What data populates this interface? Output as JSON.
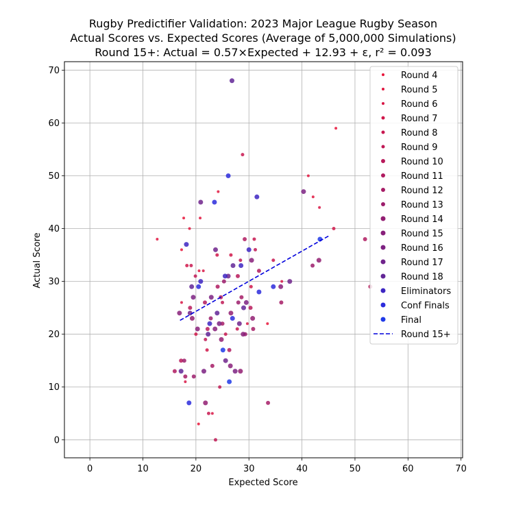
{
  "chart_data": {
    "type": "scatter",
    "title": [
      "Rugby Predictifier Validation: 2023 Major League Rugby Season",
      "Actual Scores vs. Expected Scores (Average of 5,000,000 Simulations)",
      "Round 15+: Actual = 0.57×Expected + 12.93 + ε, r² = 0.093"
    ],
    "xlabel": "Expected Score",
    "ylabel": "Actual Score",
    "xlim": [
      -4.8,
      70.3
    ],
    "ylim": [
      -3.4,
      71.6
    ],
    "xticks": [
      0,
      10,
      20,
      30,
      40,
      50,
      60,
      70
    ],
    "yticks": [
      0,
      10,
      20,
      30,
      40,
      50,
      60,
      70
    ],
    "grid": true,
    "legend_position": "upper right",
    "series": [
      {
        "name": "Round 4",
        "color": "#e8153a",
        "size": 2,
        "points": [
          [
            46.4,
            59
          ],
          [
            17.3,
            36
          ],
          [
            20.5,
            3
          ],
          [
            17.7,
            42
          ],
          [
            33.5,
            22
          ]
        ]
      },
      {
        "name": "Round 5",
        "color": "#e0163f",
        "size": 2,
        "points": [
          [
            41.2,
            50
          ],
          [
            12.7,
            38
          ],
          [
            20.8,
            42
          ],
          [
            42.1,
            46
          ],
          [
            18.8,
            40
          ],
          [
            24.2,
            47
          ],
          [
            20.6,
            32
          ]
        ]
      },
      {
        "name": "Round 6",
        "color": "#d81645",
        "size": 2,
        "points": [
          [
            43.3,
            44
          ],
          [
            17.3,
            26
          ],
          [
            23.1,
            5
          ],
          [
            29.7,
            22
          ],
          [
            36.2,
            30
          ],
          [
            21.4,
            32
          ],
          [
            18.0,
            11
          ]
        ]
      },
      {
        "name": "Round 7",
        "color": "#d0174a",
        "size": 2.5,
        "points": [
          [
            46.0,
            40
          ],
          [
            18.3,
            33
          ],
          [
            24.0,
            35
          ],
          [
            30.4,
            29
          ],
          [
            26.6,
            35
          ],
          [
            22.1,
            17
          ],
          [
            20.0,
            20
          ]
        ]
      },
      {
        "name": "Round 8",
        "color": "#c81850",
        "size": 2.5,
        "points": [
          [
            28.8,
            54
          ],
          [
            22.4,
            5
          ],
          [
            19.1,
            33
          ],
          [
            31.0,
            38
          ],
          [
            34.6,
            34
          ],
          [
            25.6,
            20
          ],
          [
            27.8,
            21
          ]
        ]
      },
      {
        "name": "Round 9",
        "color": "#c01955",
        "size": 2.5,
        "points": [
          [
            23.7,
            0
          ],
          [
            19.9,
            31
          ],
          [
            24.5,
            10
          ],
          [
            28.4,
            34
          ],
          [
            31.2,
            36
          ],
          [
            21.8,
            19
          ],
          [
            25.0,
            26
          ]
        ]
      },
      {
        "name": "Round 10",
        "color": "#b81a5b",
        "size": 3,
        "points": [
          [
            52.9,
            29
          ],
          [
            17.2,
            15
          ],
          [
            22.2,
            21
          ],
          [
            24.7,
            27
          ],
          [
            27.9,
            31
          ],
          [
            30.3,
            25
          ],
          [
            18.9,
            25
          ]
        ]
      },
      {
        "name": "Round 11",
        "color": "#b01b60",
        "size": 3,
        "points": [
          [
            51.9,
            38
          ],
          [
            16.0,
            13
          ],
          [
            24.1,
            29
          ],
          [
            21.7,
            26
          ],
          [
            26.3,
            17
          ],
          [
            29.2,
            38
          ],
          [
            31.9,
            32
          ]
        ]
      },
      {
        "name": "Round 12",
        "color": "#a61c66",
        "size": 3,
        "points": [
          [
            33.6,
            7
          ],
          [
            18.0,
            12
          ],
          [
            23.1,
            14
          ],
          [
            25.0,
            22
          ],
          [
            28.6,
            27
          ],
          [
            30.8,
            21
          ],
          [
            36.1,
            26
          ]
        ]
      },
      {
        "name": "Round 13",
        "color": "#9c1d6c",
        "size": 3,
        "points": [
          [
            42.0,
            33
          ],
          [
            17.8,
            15
          ],
          [
            22.8,
            23
          ],
          [
            25.3,
            30
          ],
          [
            28.0,
            26
          ],
          [
            29.3,
            20
          ],
          [
            19.6,
            12
          ]
        ]
      },
      {
        "name": "Round 14",
        "color": "#921e72",
        "size": 3.5,
        "points": [
          [
            43.2,
            34
          ],
          [
            19.3,
            23
          ],
          [
            21.8,
            7
          ],
          [
            26.6,
            24
          ],
          [
            28.4,
            13
          ],
          [
            30.7,
            23
          ],
          [
            24.8,
            19
          ]
        ]
      },
      {
        "name": "Round 15",
        "color": "#88207a",
        "size": 3.5,
        "points": [
          [
            36.0,
            29
          ],
          [
            16.9,
            24
          ],
          [
            20.3,
            21
          ],
          [
            23.6,
            21
          ],
          [
            26.5,
            14
          ],
          [
            28.9,
            20
          ],
          [
            30.5,
            34
          ]
        ]
      },
      {
        "name": "Round 16",
        "color": "#7d2282",
        "size": 3.5,
        "points": [
          [
            40.3,
            47
          ],
          [
            19.5,
            27
          ],
          [
            21.5,
            13
          ],
          [
            24.4,
            22
          ],
          [
            27.4,
            13
          ],
          [
            29.5,
            26
          ],
          [
            22.9,
            27
          ]
        ]
      },
      {
        "name": "Round 17",
        "color": "#70248c",
        "size": 3.5,
        "points": [
          [
            37.7,
            30
          ],
          [
            18.9,
            24
          ],
          [
            20.9,
            45
          ],
          [
            23.7,
            36
          ],
          [
            26.1,
            31
          ],
          [
            28.2,
            22
          ],
          [
            25.6,
            15
          ]
        ]
      },
      {
        "name": "Round 18",
        "color": "#622696",
        "size": 3.5,
        "points": [
          [
            26.8,
            68
          ],
          [
            19.2,
            29
          ],
          [
            22.3,
            20
          ],
          [
            24.0,
            24
          ],
          [
            27.0,
            33
          ],
          [
            29.0,
            25
          ],
          [
            17.2,
            13
          ]
        ]
      },
      {
        "name": "Eliminators",
        "color": "#3d26c2",
        "size": 3.5,
        "points": [
          [
            31.5,
            46
          ],
          [
            18.2,
            37
          ],
          [
            20.9,
            30
          ],
          [
            22.6,
            22
          ],
          [
            25.5,
            31
          ],
          [
            28.5,
            33
          ],
          [
            30.0,
            36
          ]
        ]
      },
      {
        "name": "Conf Finals",
        "color": "#2c2cdc",
        "size": 3.5,
        "points": [
          [
            26.1,
            50
          ],
          [
            18.7,
            7
          ],
          [
            20.5,
            29
          ],
          [
            23.5,
            45
          ],
          [
            26.9,
            23
          ],
          [
            31.9,
            28
          ],
          [
            34.6,
            29
          ]
        ]
      },
      {
        "name": "Final",
        "color": "#1f3ae8",
        "size": 3.5,
        "points": [
          [
            43.4,
            38
          ],
          [
            25.1,
            17
          ],
          [
            26.3,
            11
          ]
        ]
      }
    ],
    "fit": {
      "name": "Round 15+",
      "color": "#0000dd",
      "slope": 0.57,
      "intercept": 12.93,
      "x_range": [
        17,
        45.3
      ]
    }
  }
}
